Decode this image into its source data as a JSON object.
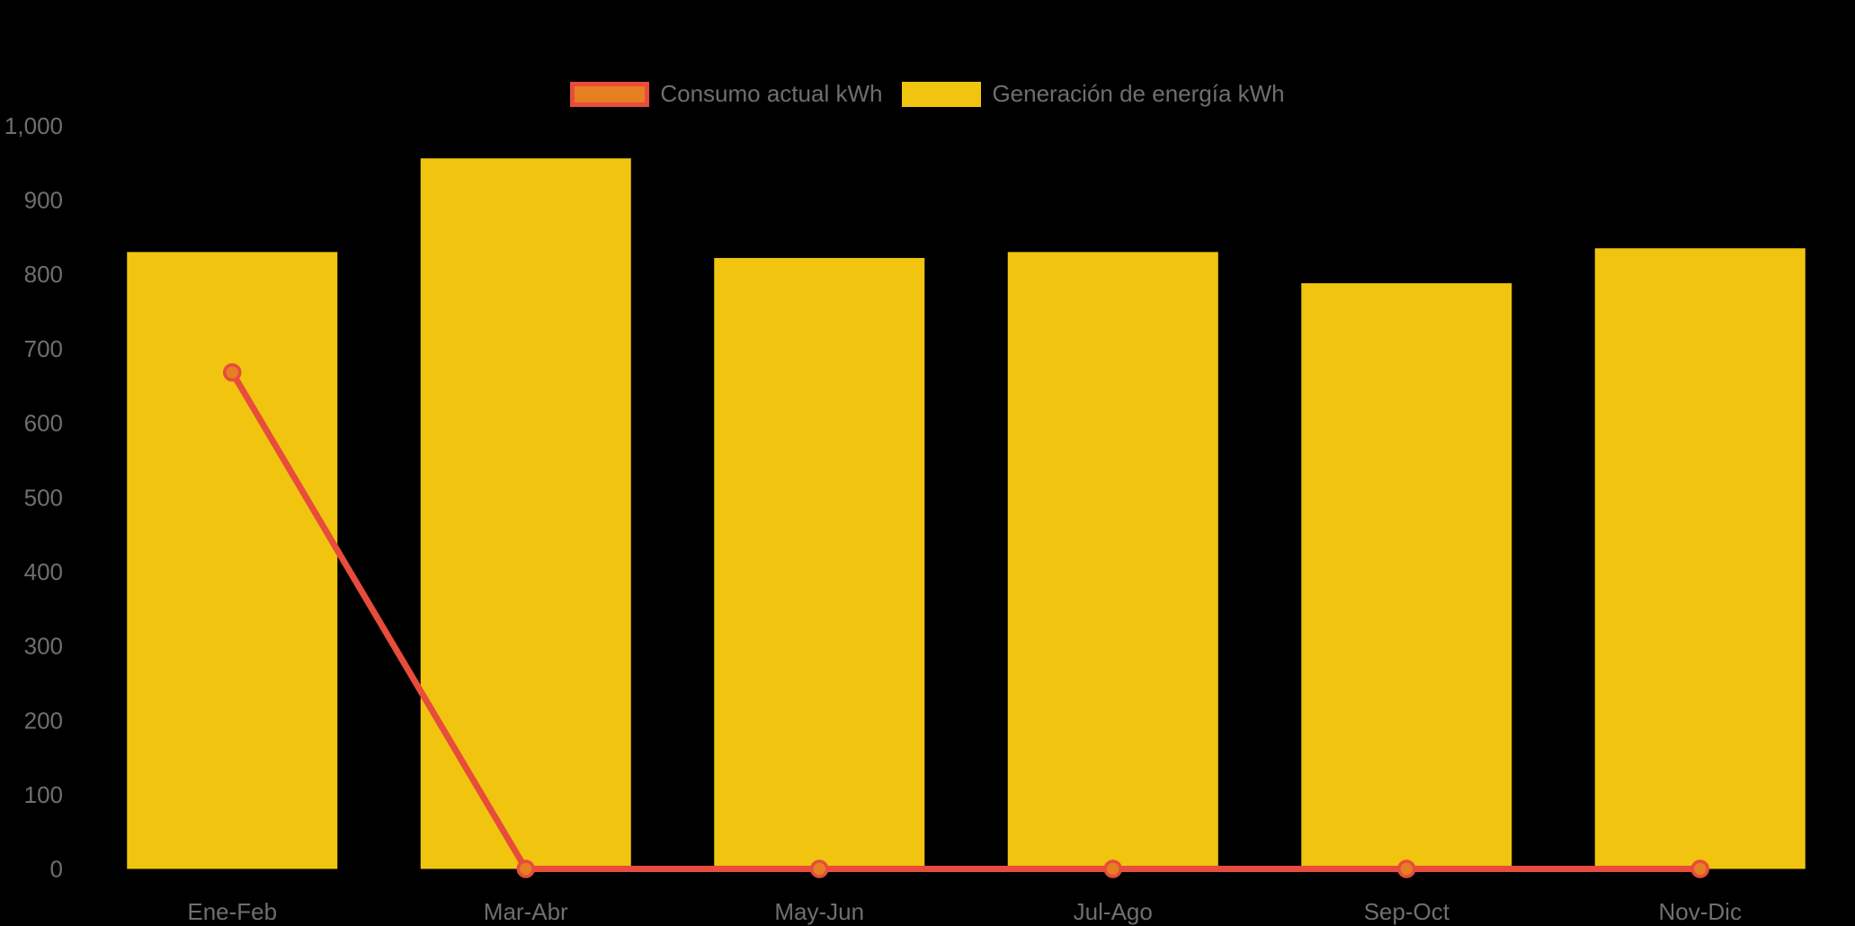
{
  "app": {
    "background_color": "#000000",
    "text_color": "#6F6F6F"
  },
  "legend": {
    "position": "top",
    "items": [
      {
        "label": "Consumo actual kWh",
        "swatch_fill": "#E67E22",
        "swatch_border": "#E74C3C"
      },
      {
        "label": "Generación de energía kWh",
        "swatch_fill": "#F1C40F",
        "swatch_border": null
      }
    ]
  },
  "chart_data": {
    "type": "bar",
    "subtype": "bar-with-line-overlay",
    "title": "",
    "xlabel": "",
    "ylabel": "",
    "categories": [
      "Ene-Feb",
      "Mar-Abr",
      "May-Jun",
      "Jul-Ago",
      "Sep-Oct",
      "Nov-Dic"
    ],
    "series": [
      {
        "name": "Consumo actual kWh",
        "kind": "line",
        "color": "#E74C3C",
        "marker_fill": "#E67E22",
        "marker_stroke": "#E74C3C",
        "values": [
          668,
          0,
          0,
          0,
          0,
          0
        ]
      },
      {
        "name": "Generación de energía kWh",
        "kind": "bar",
        "color": "#F1C40F",
        "values": [
          830,
          956,
          822,
          830,
          788,
          835
        ]
      }
    ],
    "ylim": [
      0,
      1000
    ],
    "y_ticks": [
      "0",
      "100",
      "200",
      "300",
      "400",
      "500",
      "600",
      "700",
      "800",
      "900",
      "1,000"
    ],
    "grid": false,
    "legend_position": "top"
  }
}
